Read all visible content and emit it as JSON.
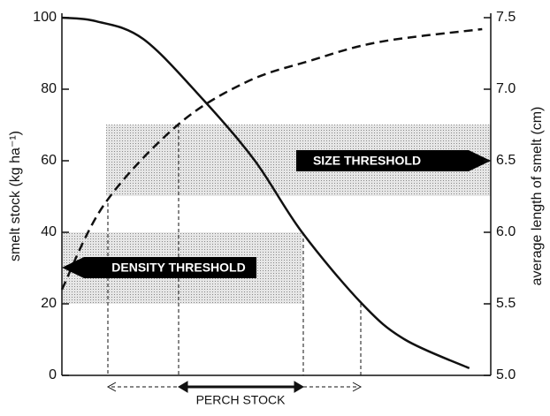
{
  "chart_data": {
    "type": "line",
    "ylabel": "smelt stock (kg ha⁻¹)",
    "y2label": "average length of smelt (cm)",
    "xlabel": "PERCH STOCK",
    "annotations": [
      "SIZE THRESHOLD",
      "DENSITY THRESHOLD"
    ],
    "xlim": [
      0,
      100
    ],
    "ylim": [
      0,
      100
    ],
    "yticks": [
      0,
      20,
      40,
      60,
      80,
      100
    ],
    "y2lim": [
      5.0,
      7.5
    ],
    "y2ticks": [
      {
        "value": 5.0,
        "label": "5.0"
      },
      5.5,
      {
        "value": 6.0,
        "label": "6.0"
      },
      6.5,
      {
        "value": 7.0,
        "label": "7.0"
      },
      7.5
    ],
    "series": [
      {
        "color": "#111111",
        "style": "solid",
        "x": [
          0,
          8,
          19,
          33,
          45,
          56,
          70,
          80,
          95
        ],
        "values": [
          100,
          99,
          94,
          77,
          60,
          40,
          20,
          10,
          2
        ]
      },
      {
        "color": "#111111",
        "style": "dashed",
        "axis": "y2",
        "x": [
          0,
          10,
          27,
          43,
          58,
          74,
          98
        ],
        "values": [
          5.6,
          6.2,
          6.75,
          7.05,
          7.2,
          7.33,
          7.42
        ]
      }
    ]
  }
}
